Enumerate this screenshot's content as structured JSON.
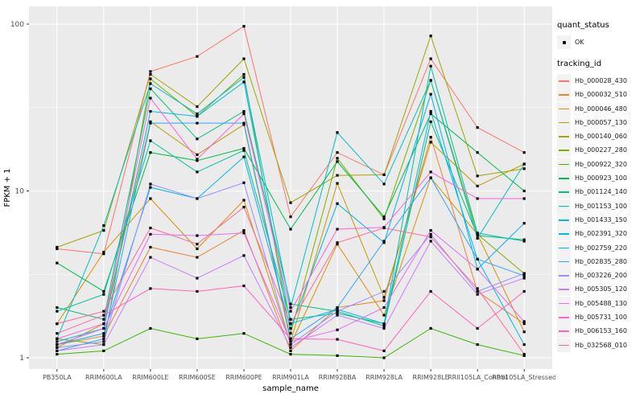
{
  "chart_data": {
    "type": "line",
    "title": "",
    "xlabel": "sample_name",
    "ylabel": "FPKM + 1",
    "y_scale": "log10",
    "y_ticks": [
      1,
      10,
      100
    ],
    "y_minor_ticks": [
      3.1623,
      31.623
    ],
    "ylim": [
      0.86,
      127
    ],
    "grid": "white major+minor horizontal, white vertical at each category, on gray panel",
    "legend_position": "right",
    "categories": [
      "PB350LA",
      "RRIM600LA",
      "RRIM600LE",
      "RRIM600SE",
      "RRIM600PE",
      "RRIM901LA",
      "RRIM928BA",
      "RRIM928LA",
      "RRIM928LE",
      "RRII105LA_Control",
      "RRII105LA_Stressed"
    ],
    "series": [
      {
        "name": "Hb_000028_430",
        "color": "#F8766D",
        "values": [
          4.5,
          4.2,
          52,
          64,
          97,
          7.0,
          17,
          12.5,
          62,
          24,
          17
        ]
      },
      {
        "name": "Hb_000032_510",
        "color": "#EA8331",
        "values": [
          1.2,
          1.35,
          4.6,
          4.0,
          5.8,
          1.1,
          2.0,
          2.2,
          21,
          2.5,
          1.6
        ]
      },
      {
        "name": "Hb_000046_480",
        "color": "#D89000",
        "values": [
          1.6,
          4.3,
          9.0,
          4.5,
          8.8,
          1.2,
          4.8,
          1.8,
          12,
          5.5,
          1.43
        ]
      },
      {
        "name": "Hb_000057_130",
        "color": "#C09B00",
        "values": [
          1.15,
          1.6,
          26,
          16.5,
          25,
          1.25,
          11.1,
          2.3,
          19.6,
          10.7,
          14.5
        ]
      },
      {
        "name": "Hb_000140_060",
        "color": "#A3A500",
        "values": [
          4.6,
          5.8,
          50,
          32,
          62,
          8.5,
          12.4,
          12.5,
          85,
          12.3,
          13.6
        ]
      },
      {
        "name": "Hb_000227_280",
        "color": "#7CAE00",
        "values": [
          1.3,
          1.2,
          47,
          28,
          50,
          1.4,
          15.7,
          6.8,
          46,
          5.5,
          3.2
        ]
      },
      {
        "name": "Hb_000922_320",
        "color": "#39B600",
        "values": [
          1.05,
          1.1,
          1.5,
          1.3,
          1.4,
          1.05,
          1.03,
          1.0,
          1.5,
          1.2,
          1.03
        ]
      },
      {
        "name": "Hb_000923_100",
        "color": "#00BB4E",
        "values": [
          3.7,
          2.5,
          17,
          15.2,
          18,
          5.9,
          15,
          7.0,
          29,
          17,
          10
        ]
      },
      {
        "name": "Hb_001124_140",
        "color": "#00BF7D",
        "values": [
          2.0,
          1.7,
          41,
          20.5,
          30,
          2.1,
          1.9,
          1.55,
          26,
          5.4,
          5.1
        ]
      },
      {
        "name": "Hb_001153_100",
        "color": "#00C1A3",
        "values": [
          1.9,
          2.4,
          20,
          13,
          17.5,
          1.7,
          1.85,
          1.6,
          56,
          5.6,
          5.0
        ]
      },
      {
        "name": "Hb_001433_150",
        "color": "#00BFC4",
        "values": [
          1.3,
          6.2,
          44,
          29,
          48,
          2.0,
          22.4,
          11,
          46,
          5.2,
          14.5
        ]
      },
      {
        "name": "Hb_002391_320",
        "color": "#00BAE0",
        "values": [
          1.25,
          1.5,
          30,
          28,
          45,
          1.6,
          1.95,
          1.6,
          30,
          3.9,
          1.2
        ]
      },
      {
        "name": "Hb_002759_220",
        "color": "#00B0F6",
        "values": [
          1.2,
          1.4,
          10.5,
          9.0,
          16,
          1.5,
          8.4,
          4.9,
          38,
          3.4,
          6.4
        ]
      },
      {
        "name": "Hb_002835_280",
        "color": "#35A2FF",
        "values": [
          1.1,
          1.3,
          25.5,
          25.5,
          25.5,
          1.3,
          2.0,
          5.0,
          12,
          3.9,
          3.1
        ]
      },
      {
        "name": "Hb_003226_200",
        "color": "#9590FF",
        "values": [
          1.15,
          1.25,
          11,
          9.0,
          11.2,
          1.2,
          1.9,
          2.5,
          5.5,
          2.5,
          3.2
        ]
      },
      {
        "name": "Hb_005305_120",
        "color": "#C77CFF",
        "values": [
          1.1,
          1.2,
          4.0,
          3.0,
          4.1,
          1.15,
          1.8,
          1.5,
          5.0,
          2.4,
          3.0
        ]
      },
      {
        "name": "Hb_005488_130",
        "color": "#E76BF3",
        "values": [
          1.2,
          1.5,
          5.5,
          5.4,
          5.6,
          1.25,
          1.47,
          2.0,
          5.8,
          3.4,
          1.65
        ]
      },
      {
        "name": "Hb_005731_100",
        "color": "#FA62DB",
        "values": [
          1.3,
          1.6,
          36,
          15.5,
          29,
          1.9,
          5.9,
          6.05,
          13,
          9.0,
          9.0
        ]
      },
      {
        "name": "Hb_006153_160",
        "color": "#FF62BC",
        "values": [
          1.4,
          1.8,
          2.6,
          2.5,
          2.7,
          1.3,
          1.29,
          1.1,
          2.5,
          1.5,
          2.5
        ]
      },
      {
        "name": "Hb_032568_010",
        "color": "#FF6A98",
        "values": [
          1.6,
          1.9,
          6.0,
          4.8,
          8.0,
          1.6,
          4.9,
          6.0,
          5.3,
          2.6,
          1.05
        ]
      }
    ]
  },
  "legend": {
    "quant_title": "quant_status",
    "quant_value": "OK",
    "tracking_title": "tracking_id"
  },
  "colors": {
    "panel_bg": "#EBEBEB",
    "grid": "#FFFFFF",
    "tick_text": "#4D4D4D",
    "axis_title_text": "#000000",
    "point": "#000000",
    "legend_key_bg": "#F2F2F2",
    "tick_mark": "#333333"
  }
}
